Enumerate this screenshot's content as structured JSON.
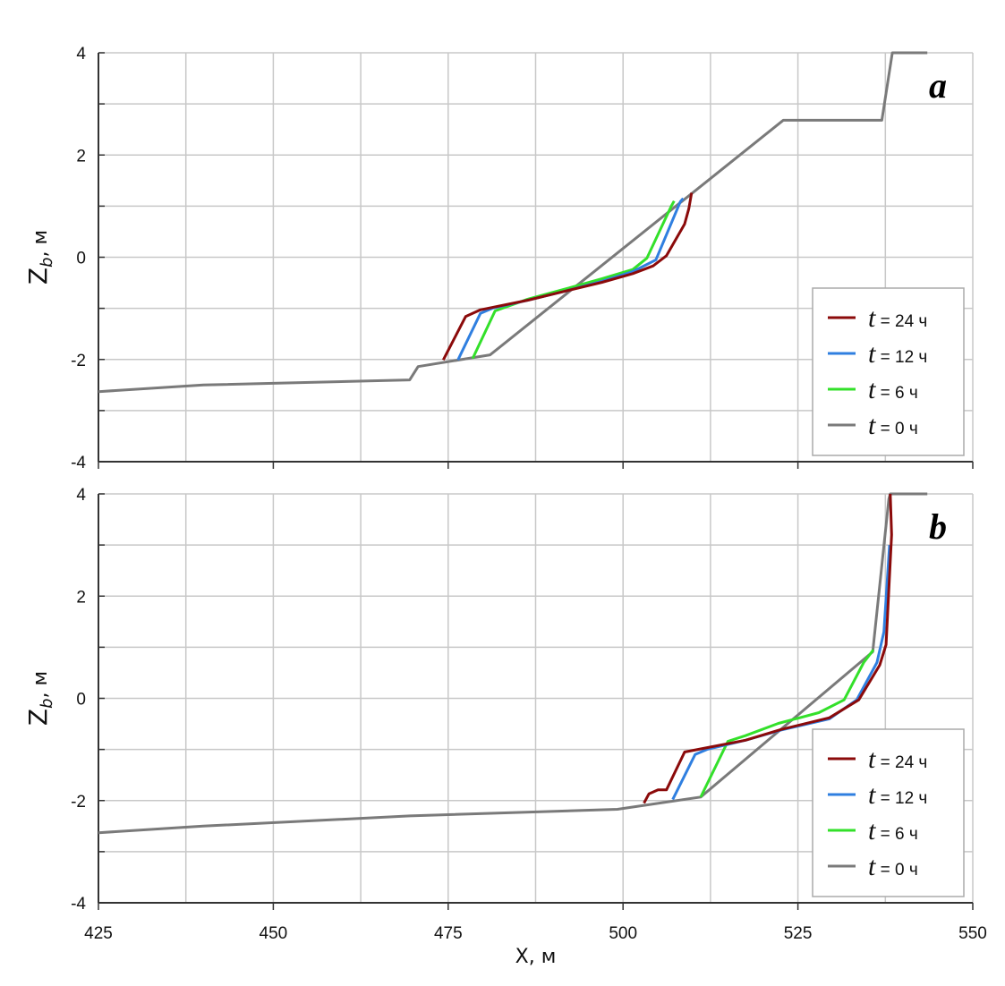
{
  "chart_data": [
    {
      "type": "line",
      "panel_label": "a",
      "xlabel": "X, м",
      "ylabel_main": "Z",
      "ylabel_sub": "b",
      "ylabel_unit": ", м",
      "xlim": [
        425,
        550
      ],
      "ylim": [
        -4,
        4
      ],
      "xticks": [
        "425",
        "450",
        "475",
        "500",
        "525",
        "550"
      ],
      "yticks": [
        "-4",
        "-2",
        "0",
        "2",
        "4"
      ],
      "grid": true,
      "legend_position": "bottom-right",
      "series": [
        {
          "name": "t = 0 ч",
          "label_var": "t",
          "label_rest": " = 0 ч",
          "color": "#7a7a7a",
          "points": [
            [
              425,
              -2.63
            ],
            [
              440,
              -2.5
            ],
            [
              469.5,
              -2.4
            ],
            [
              470.7,
              -2.14
            ],
            [
              481,
              -1.91
            ],
            [
              522.9,
              2.68
            ],
            [
              537,
              2.68
            ],
            [
              538.5,
              4
            ],
            [
              543.5,
              4
            ]
          ]
        },
        {
          "name": "t = 6 ч",
          "label_var": "t",
          "label_rest": " = 6 ч",
          "color": "#33e02a",
          "points": [
            [
              478.5,
              -1.98
            ],
            [
              481.7,
              -1.05
            ],
            [
              486.4,
              -0.82
            ],
            [
              491.5,
              -0.63
            ],
            [
              497,
              -0.42
            ],
            [
              501.4,
              -0.24
            ],
            [
              503.4,
              -0.02
            ],
            [
              506.9,
              1.0
            ],
            [
              507.3,
              1.1
            ]
          ]
        },
        {
          "name": "t = 12 ч",
          "label_var": "t",
          "label_rest": " = 12 ч",
          "color": "#2f7fe0",
          "points": [
            [
              476.4,
              -2.01
            ],
            [
              479.6,
              -1.1
            ],
            [
              481.3,
              -1.0
            ],
            [
              486.4,
              -0.84
            ],
            [
              491.5,
              -0.67
            ],
            [
              497,
              -0.47
            ],
            [
              501.4,
              -0.28
            ],
            [
              504.7,
              -0.05
            ],
            [
              508.2,
              1.09
            ],
            [
              508.6,
              1.15
            ]
          ]
        },
        {
          "name": "t = 24 ч",
          "label_var": "t",
          "label_rest": " = 24 ч",
          "color": "#8b0a0a",
          "points": [
            [
              474.3,
              -2.01
            ],
            [
              477.5,
              -1.16
            ],
            [
              479.6,
              -1.03
            ],
            [
              486.4,
              -0.84
            ],
            [
              491.5,
              -0.67
            ],
            [
              497,
              -0.49
            ],
            [
              501.4,
              -0.32
            ],
            [
              504.3,
              -0.17
            ],
            [
              506.2,
              0.03
            ],
            [
              508.8,
              0.65
            ],
            [
              509.4,
              0.95
            ],
            [
              509.8,
              1.26
            ]
          ]
        }
      ]
    },
    {
      "type": "line",
      "panel_label": "b",
      "xlabel": "X, м",
      "ylabel_main": "Z",
      "ylabel_sub": "b",
      "ylabel_unit": ", м",
      "xlim": [
        425,
        550
      ],
      "ylim": [
        -4,
        4
      ],
      "xticks": [
        "425",
        "450",
        "475",
        "500",
        "525",
        "550"
      ],
      "yticks": [
        "-4",
        "-2",
        "0",
        "2",
        "4"
      ],
      "grid": true,
      "legend_position": "bottom-right",
      "series": [
        {
          "name": "t = 0 ч",
          "label_var": "t",
          "label_rest": " = 0 ч",
          "color": "#7a7a7a",
          "points": [
            [
              425,
              -2.63
            ],
            [
              440,
              -2.5
            ],
            [
              469.5,
              -2.3
            ],
            [
              499.2,
              -2.17
            ],
            [
              511.1,
              -1.93
            ],
            [
              535.7,
              0.91
            ],
            [
              538,
              3.9
            ],
            [
              538.2,
              4
            ],
            [
              543.5,
              4
            ]
          ]
        },
        {
          "name": "t = 6 ч",
          "label_var": "t",
          "label_rest": " = 6 ч",
          "color": "#33e02a",
          "points": [
            [
              511.1,
              -1.93
            ],
            [
              515,
              -0.84
            ],
            [
              517.5,
              -0.73
            ],
            [
              522.2,
              -0.49
            ],
            [
              528,
              -0.28
            ],
            [
              531.6,
              -0.03
            ],
            [
              534.4,
              0.7
            ],
            [
              535.8,
              0.95
            ]
          ]
        },
        {
          "name": "t = 12 ч",
          "label_var": "t",
          "label_rest": " = 12 ч",
          "color": "#2f7fe0",
          "points": [
            [
              507.1,
              -1.98
            ],
            [
              510.3,
              -1.1
            ],
            [
              512,
              -1.0
            ],
            [
              517.5,
              -0.82
            ],
            [
              522.6,
              -0.62
            ],
            [
              529.5,
              -0.4
            ],
            [
              533.4,
              -0.03
            ],
            [
              536.3,
              0.7
            ],
            [
              537.3,
              1.3
            ],
            [
              538.1,
              3.0
            ]
          ]
        },
        {
          "name": "t = 24 ч",
          "label_var": "t",
          "label_rest": " = 24 ч",
          "color": "#8b0a0a",
          "points": [
            [
              503,
              -2.05
            ],
            [
              503.7,
              -1.87
            ],
            [
              505,
              -1.79
            ],
            [
              506.2,
              -1.79
            ],
            [
              508.8,
              -1.05
            ],
            [
              510.7,
              -1.0
            ],
            [
              517.5,
              -0.82
            ],
            [
              522.6,
              -0.61
            ],
            [
              529.5,
              -0.38
            ],
            [
              533.7,
              -0.03
            ],
            [
              536.7,
              0.65
            ],
            [
              537.6,
              1.05
            ],
            [
              538.4,
              3.2
            ],
            [
              538.2,
              4
            ]
          ]
        }
      ]
    }
  ]
}
